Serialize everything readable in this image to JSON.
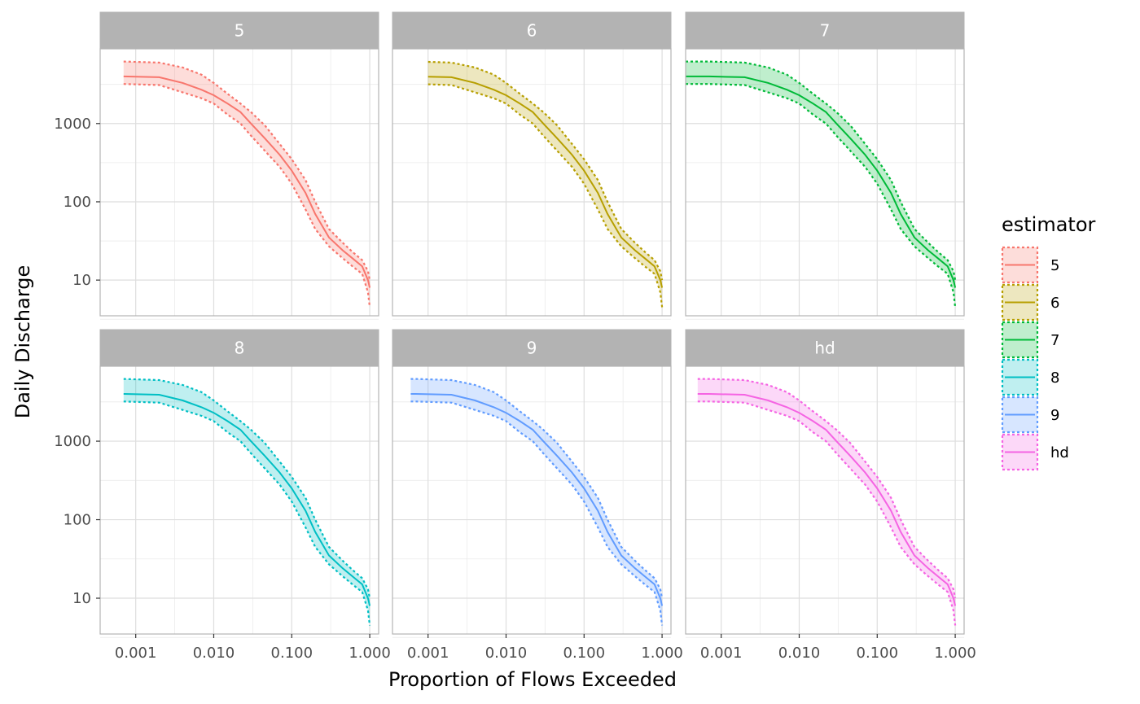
{
  "chart_data": {
    "type": "line",
    "x_axis": {
      "label": "Proportion of Flows Exceeded",
      "scale": "log",
      "range": [
        0.00035,
        1.3
      ],
      "ticks": [
        0.001,
        0.01,
        0.1,
        1.0
      ],
      "tick_labels": [
        "0.001",
        "0.010",
        "0.100",
        "1.000"
      ]
    },
    "y_axis": {
      "label": "Daily Discharge",
      "scale": "log",
      "range": [
        3.5,
        9000
      ],
      "ticks": [
        10,
        100,
        1000
      ],
      "tick_labels": [
        "10",
        "100",
        "1000"
      ]
    },
    "grid": true,
    "legend": {
      "title": "estimator",
      "position": "right",
      "entries": [
        {
          "label": "5",
          "color": "#F8766D"
        },
        {
          "label": "6",
          "color": "#B79F00"
        },
        {
          "label": "7",
          "color": "#00BA38"
        },
        {
          "label": "8",
          "color": "#00BFC4"
        },
        {
          "label": "9",
          "color": "#619CFF"
        },
        {
          "label": "hd",
          "color": "#F564E3"
        }
      ]
    },
    "panels": [
      {
        "label": "5",
        "color": "#F8766D",
        "x_min": 0.0007
      },
      {
        "label": "6",
        "color": "#B79F00",
        "x_min": 0.001
      },
      {
        "label": "7",
        "color": "#00BA38",
        "x_min": 0.00035
      },
      {
        "label": "8",
        "color": "#00BFC4",
        "x_min": 0.0007
      },
      {
        "label": "9",
        "color": "#619CFF",
        "x_min": 0.0006
      },
      {
        "label": "hd",
        "color": "#F564E3",
        "x_min": 0.0005
      }
    ],
    "series": {
      "median": [
        [
          0.0007,
          4000
        ],
        [
          0.002,
          3900
        ],
        [
          0.004,
          3300
        ],
        [
          0.007,
          2700
        ],
        [
          0.01,
          2300
        ],
        [
          0.015,
          1800
        ],
        [
          0.022,
          1400
        ],
        [
          0.03,
          1000
        ],
        [
          0.045,
          650
        ],
        [
          0.07,
          400
        ],
        [
          0.1,
          250
        ],
        [
          0.15,
          130
        ],
        [
          0.2,
          70
        ],
        [
          0.3,
          35
        ],
        [
          0.45,
          24
        ],
        [
          0.6,
          19
        ],
        [
          0.8,
          15
        ],
        [
          0.95,
          10
        ],
        [
          1.0,
          8
        ]
      ],
      "upper": [
        [
          0.0007,
          6200
        ],
        [
          0.002,
          6000
        ],
        [
          0.004,
          5200
        ],
        [
          0.007,
          4200
        ],
        [
          0.01,
          3300
        ],
        [
          0.015,
          2400
        ],
        [
          0.022,
          1800
        ],
        [
          0.03,
          1400
        ],
        [
          0.045,
          950
        ],
        [
          0.07,
          550
        ],
        [
          0.1,
          350
        ],
        [
          0.15,
          190
        ],
        [
          0.2,
          100
        ],
        [
          0.3,
          45
        ],
        [
          0.45,
          30
        ],
        [
          0.6,
          23
        ],
        [
          0.8,
          18
        ],
        [
          0.95,
          13
        ],
        [
          1.0,
          10
        ]
      ],
      "lower": [
        [
          0.0007,
          3200
        ],
        [
          0.002,
          3100
        ],
        [
          0.004,
          2500
        ],
        [
          0.007,
          2100
        ],
        [
          0.01,
          1800
        ],
        [
          0.015,
          1300
        ],
        [
          0.022,
          1000
        ],
        [
          0.03,
          700
        ],
        [
          0.045,
          450
        ],
        [
          0.07,
          280
        ],
        [
          0.1,
          170
        ],
        [
          0.15,
          80
        ],
        [
          0.2,
          45
        ],
        [
          0.3,
          27
        ],
        [
          0.45,
          19
        ],
        [
          0.6,
          15
        ],
        [
          0.8,
          12
        ],
        [
          0.95,
          7
        ],
        [
          1.0,
          4.5
        ]
      ]
    }
  }
}
